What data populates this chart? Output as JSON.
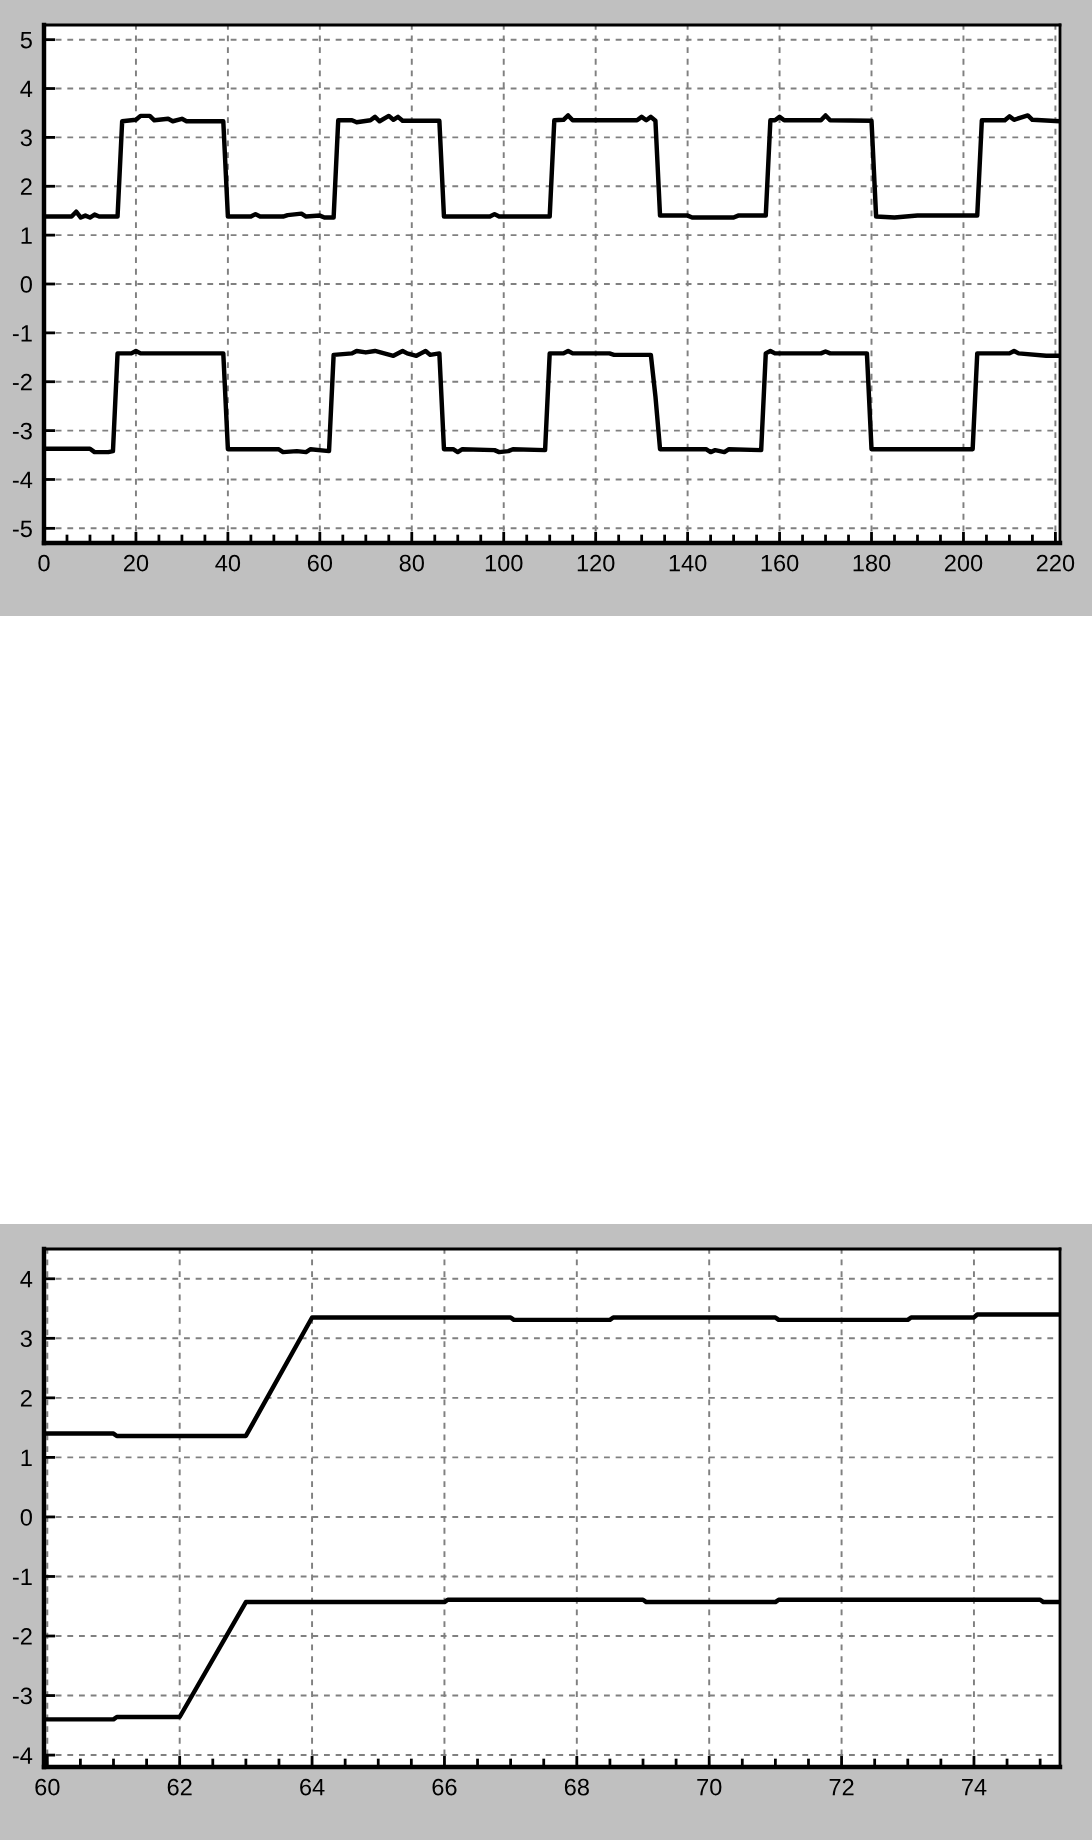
{
  "chart_data": [
    {
      "type": "line",
      "line_style": "solid",
      "grid": true,
      "xlim": [
        0,
        221
      ],
      "ylim": [
        -5.3,
        5.3
      ],
      "xticks": [
        0,
        {
          "value": 5,
          "label": null
        },
        {
          "value": 10,
          "label": null
        },
        {
          "value": 15,
          "label": null
        },
        20,
        {
          "value": 25,
          "label": null
        },
        {
          "value": 30,
          "label": null
        },
        {
          "value": 35,
          "label": null
        },
        40,
        {
          "value": 45,
          "label": null
        },
        {
          "value": 50,
          "label": null
        },
        {
          "value": 55,
          "label": null
        },
        60,
        {
          "value": 65,
          "label": null
        },
        {
          "value": 70,
          "label": null
        },
        {
          "value": 75,
          "label": null
        },
        80,
        {
          "value": 85,
          "label": null
        },
        {
          "value": 90,
          "label": null
        },
        {
          "value": 95,
          "label": null
        },
        100,
        {
          "value": 105,
          "label": null
        },
        {
          "value": 110,
          "label": null
        },
        {
          "value": 115,
          "label": null
        },
        120,
        {
          "value": 125,
          "label": null
        },
        {
          "value": 130,
          "label": null
        },
        {
          "value": 135,
          "label": null
        },
        140,
        {
          "value": 145,
          "label": null
        },
        {
          "value": 150,
          "label": null
        },
        {
          "value": 155,
          "label": null
        },
        160,
        {
          "value": 165,
          "label": null
        },
        {
          "value": 170,
          "label": null
        },
        {
          "value": 175,
          "label": null
        },
        180,
        {
          "value": 185,
          "label": null
        },
        {
          "value": 190,
          "label": null
        },
        {
          "value": 195,
          "label": null
        },
        200,
        {
          "value": 205,
          "label": null
        },
        {
          "value": 210,
          "label": null
        },
        {
          "value": 215,
          "label": null
        },
        220
      ],
      "yticks": [
        -5,
        -4,
        -3,
        -2,
        -1,
        0,
        1,
        2,
        3,
        4,
        5
      ],
      "series": [
        {
          "color": "#000000",
          "x": [
            0,
            6,
            7,
            8,
            9,
            10,
            11,
            12,
            16,
            17,
            20,
            21,
            23,
            24,
            27,
            28,
            30,
            31,
            39,
            40,
            45,
            46,
            47,
            52,
            53,
            56,
            57,
            60,
            61,
            63,
            64,
            67,
            68,
            71,
            72,
            73,
            75,
            76,
            77,
            78,
            86,
            87,
            97,
            98,
            99,
            110,
            111,
            113,
            114,
            115,
            129,
            130,
            131,
            132,
            133,
            134,
            140,
            141,
            150,
            151,
            157,
            158,
            159,
            160,
            161,
            169,
            170,
            171,
            180,
            181,
            185,
            190,
            203,
            204,
            209,
            210,
            211,
            214,
            215,
            221
          ],
          "values": [
            1.38,
            1.38,
            1.48,
            1.36,
            1.4,
            1.36,
            1.42,
            1.38,
            1.38,
            3.33,
            3.36,
            3.44,
            3.44,
            3.35,
            3.38,
            3.33,
            3.38,
            3.33,
            3.33,
            1.38,
            1.38,
            1.43,
            1.38,
            1.38,
            1.41,
            1.44,
            1.38,
            1.4,
            1.36,
            1.36,
            3.35,
            3.35,
            3.31,
            3.35,
            3.42,
            3.33,
            3.44,
            3.36,
            3.42,
            3.34,
            3.34,
            1.38,
            1.38,
            1.43,
            1.38,
            1.38,
            3.35,
            3.36,
            3.45,
            3.35,
            3.35,
            3.42,
            3.35,
            3.42,
            3.34,
            1.4,
            1.4,
            1.36,
            1.36,
            1.4,
            1.4,
            3.35,
            3.35,
            3.42,
            3.35,
            3.35,
            3.45,
            3.35,
            3.34,
            1.38,
            1.36,
            1.4,
            1.4,
            3.35,
            3.35,
            3.43,
            3.36,
            3.45,
            3.36,
            3.33
          ]
        },
        {
          "color": "#000000",
          "x": [
            0,
            10,
            11,
            14,
            15,
            16,
            19,
            20,
            21,
            39,
            40,
            51,
            52,
            55,
            57,
            58,
            62,
            63,
            67,
            68,
            70,
            72,
            74,
            76,
            78,
            79,
            81,
            82,
            83,
            84,
            86,
            87,
            89,
            90,
            91,
            98,
            99,
            101,
            102,
            109,
            110,
            113,
            114,
            115,
            123,
            124,
            132,
            133,
            134,
            144,
            145,
            146,
            148,
            149,
            156,
            157,
            158,
            159,
            169,
            170,
            171,
            179,
            180,
            202,
            203,
            210,
            211,
            212,
            218,
            221
          ],
          "values": [
            -3.37,
            -3.37,
            -3.44,
            -3.44,
            -3.42,
            -1.42,
            -1.42,
            -1.37,
            -1.42,
            -1.42,
            -3.38,
            -3.38,
            -3.44,
            -3.42,
            -3.44,
            -3.38,
            -3.42,
            -1.45,
            -1.42,
            -1.37,
            -1.4,
            -1.37,
            -1.42,
            -1.47,
            -1.37,
            -1.42,
            -1.47,
            -1.42,
            -1.37,
            -1.45,
            -1.42,
            -3.38,
            -3.38,
            -3.44,
            -3.38,
            -3.4,
            -3.44,
            -3.42,
            -3.38,
            -3.4,
            -1.42,
            -1.42,
            -1.37,
            -1.42,
            -1.42,
            -1.45,
            -1.45,
            -2.3,
            -3.38,
            -3.38,
            -3.44,
            -3.4,
            -3.44,
            -3.38,
            -3.4,
            -1.42,
            -1.37,
            -1.42,
            -1.42,
            -1.38,
            -1.42,
            -1.42,
            -3.38,
            -3.38,
            -1.42,
            -1.42,
            -1.37,
            -1.42,
            -1.47,
            -1.47
          ]
        }
      ]
    },
    {
      "type": "line",
      "line_style": "solid",
      "grid": true,
      "xlim": [
        59.95,
        75.3
      ],
      "ylim": [
        -4.2,
        4.5
      ],
      "xticks": [
        60,
        {
          "value": 60.5,
          "label": null
        },
        {
          "value": 61,
          "label": null
        },
        {
          "value": 61.5,
          "label": null
        },
        62,
        {
          "value": 62.5,
          "label": null
        },
        {
          "value": 63,
          "label": null
        },
        {
          "value": 63.5,
          "label": null
        },
        64,
        {
          "value": 64.5,
          "label": null
        },
        {
          "value": 65,
          "label": null
        },
        {
          "value": 65.5,
          "label": null
        },
        66,
        {
          "value": 66.5,
          "label": null
        },
        {
          "value": 67,
          "label": null
        },
        {
          "value": 67.5,
          "label": null
        },
        68,
        {
          "value": 68.5,
          "label": null
        },
        {
          "value": 69,
          "label": null
        },
        {
          "value": 69.5,
          "label": null
        },
        70,
        {
          "value": 70.5,
          "label": null
        },
        {
          "value": 71,
          "label": null
        },
        {
          "value": 71.5,
          "label": null
        },
        72,
        {
          "value": 72.5,
          "label": null
        },
        {
          "value": 73,
          "label": null
        },
        {
          "value": 73.5,
          "label": null
        },
        74,
        {
          "value": 74.5,
          "label": null
        },
        {
          "value": 75,
          "label": null
        }
      ],
      "yticks": [
        -4,
        -3,
        -2,
        -1,
        0,
        1,
        2,
        3,
        4
      ],
      "series": [
        {
          "color": "#000000",
          "x": [
            59.95,
            61,
            61.05,
            63,
            64,
            67,
            67.05,
            68.5,
            68.55,
            71,
            71.05,
            73,
            73.05,
            74,
            74.05,
            75.3
          ],
          "values": [
            1.4,
            1.4,
            1.36,
            1.36,
            3.35,
            3.35,
            3.31,
            3.31,
            3.35,
            3.35,
            3.31,
            3.31,
            3.35,
            3.35,
            3.4,
            3.4
          ]
        },
        {
          "color": "#000000",
          "x": [
            59.95,
            61,
            61.05,
            62,
            63,
            66,
            66.05,
            69,
            69.05,
            71,
            71.05,
            75,
            75.05,
            75.3
          ],
          "values": [
            -3.4,
            -3.4,
            -3.36,
            -3.36,
            -1.43,
            -1.43,
            -1.39,
            -1.39,
            -1.43,
            -1.43,
            -1.39,
            -1.39,
            -1.43,
            -1.43
          ]
        }
      ]
    }
  ]
}
